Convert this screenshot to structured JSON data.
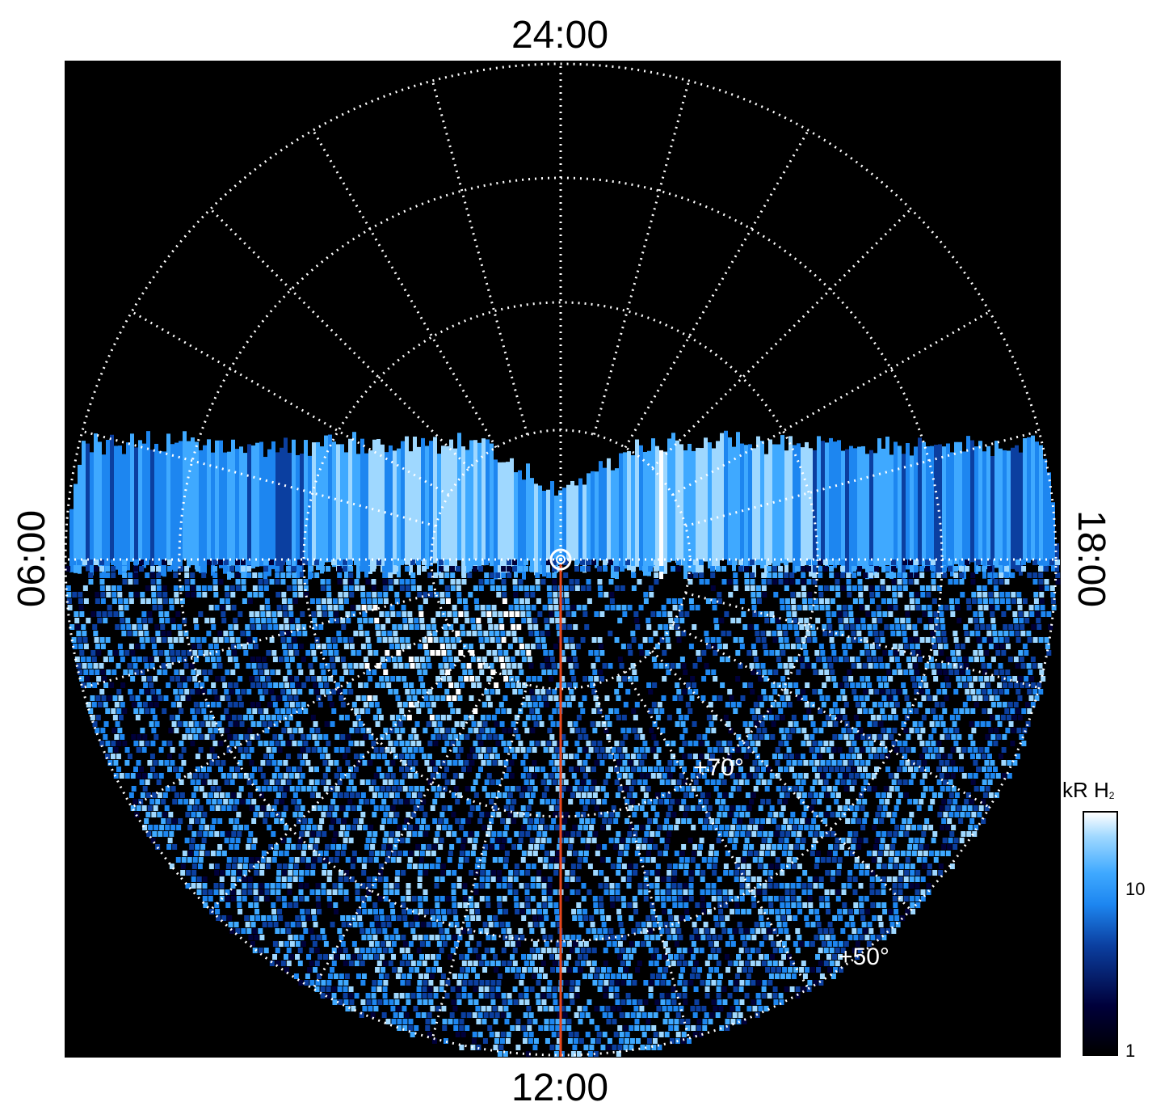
{
  "chart_data": {
    "type": "heatmap",
    "projection": "polar",
    "orientation_labels": {
      "top": "24:00",
      "bottom": "12:00",
      "left": "06:00",
      "right": "18:00"
    },
    "latitude_labels": [
      "+70°",
      "+50°"
    ],
    "colorbar": {
      "title": "kR H",
      "title_subscript": "2",
      "scale": "log",
      "range": [
        1,
        25
      ],
      "tick_labels": [
        "10",
        "1"
      ],
      "colors": [
        "#000000",
        "#00003a",
        "#0b3fa0",
        "#1d86f0",
        "#3fa9ff",
        "#9fd8ff",
        "#ffffff"
      ]
    },
    "grid": "on",
    "grid_style": "dotted white",
    "reference_line": {
      "local_time": "12:00",
      "color": "#e8471b"
    }
  }
}
